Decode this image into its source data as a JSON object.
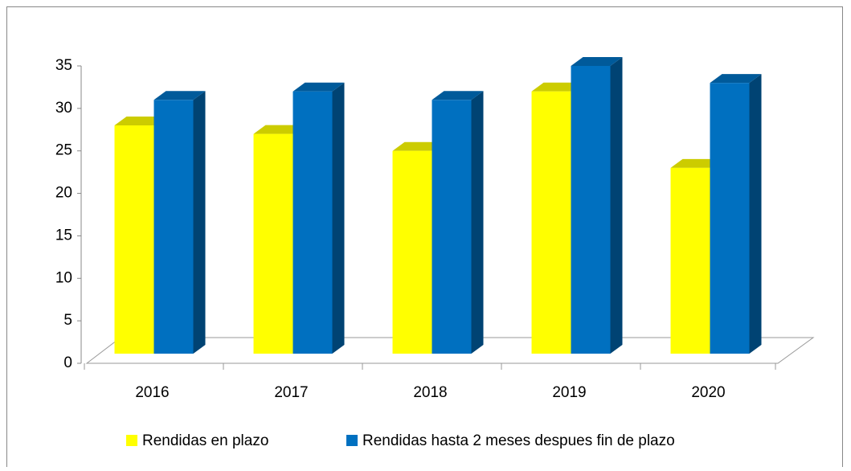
{
  "chart_data": {
    "type": "bar3d",
    "categories": [
      "2016",
      "2017",
      "2018",
      "2019",
      "2020"
    ],
    "series": [
      {
        "name": "Rendidas en plazo",
        "color": "#ffff00",
        "values": [
          28,
          27,
          25,
          32,
          23
        ]
      },
      {
        "name": "Rendidas hasta 2 meses despues fin de plazo",
        "color": "#0070c0",
        "values": [
          31,
          32,
          31,
          35,
          33
        ]
      }
    ],
    "ylim": [
      0,
      35
    ],
    "yticks": [
      0,
      5,
      10,
      15,
      20,
      25,
      30,
      35
    ]
  }
}
